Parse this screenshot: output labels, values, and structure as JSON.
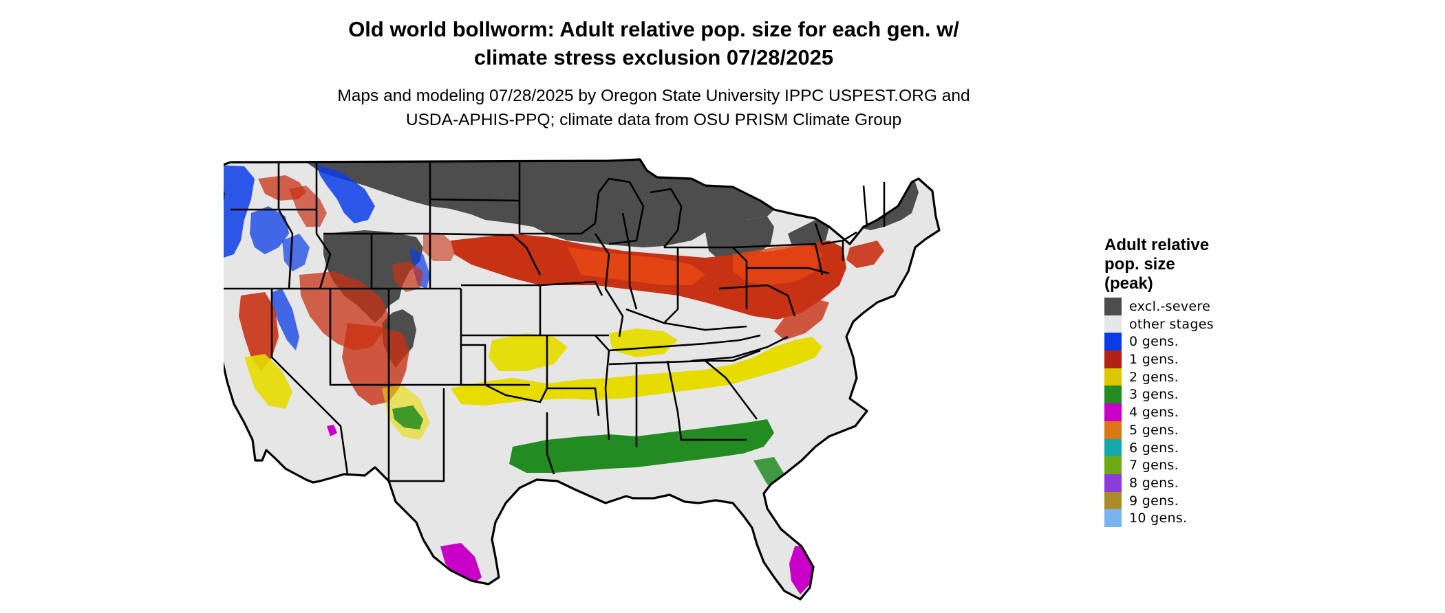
{
  "title": {
    "line1": "Old world bollworm: Adult relative pop. size for each gen. w/",
    "line2": "climate stress exclusion 07/28/2025"
  },
  "subtitle": {
    "line1": "Maps and modeling 07/28/2025 by Oregon State University IPPC USPEST.ORG and",
    "line2": "USDA-APHIS-PPQ; climate data from OSU PRISM Climate Group"
  },
  "legend": {
    "title_lines": [
      "Adult relative",
      "pop. size",
      "(peak)"
    ],
    "items": [
      {
        "label": "excl.-severe",
        "color": "#4d4d4d"
      },
      {
        "label": "other stages",
        "color": "#e6e6e6"
      },
      {
        "label": "0 gens.",
        "color": "#0a3ce6"
      },
      {
        "label": "1 gens.",
        "color": "#b22214"
      },
      {
        "label": "2 gens.",
        "color": "#dcc800"
      },
      {
        "label": "3 gens.",
        "color": "#228b22"
      },
      {
        "label": "4 gens.",
        "color": "#c800c8"
      },
      {
        "label": "5 gens.",
        "color": "#dc7814"
      },
      {
        "label": "6 gens.",
        "color": "#14aaaa"
      },
      {
        "label": "7 gens.",
        "color": "#6eaa14"
      },
      {
        "label": "8 gens.",
        "color": "#8c3cdc"
      },
      {
        "label": "9 gens.",
        "color": "#aa8c28"
      },
      {
        "label": "10 gens.",
        "color": "#78b4f0"
      }
    ]
  },
  "map_colors": {
    "land": "#e6e6e6",
    "excluded": "#4d4d4d",
    "gen0": "#0a3ce6",
    "gen1": "#c83214",
    "gen1_red": "#e64614",
    "gen2": "#e6dc00",
    "gen3": "#228b22",
    "gen4": "#c800c8",
    "border": "#000000"
  }
}
